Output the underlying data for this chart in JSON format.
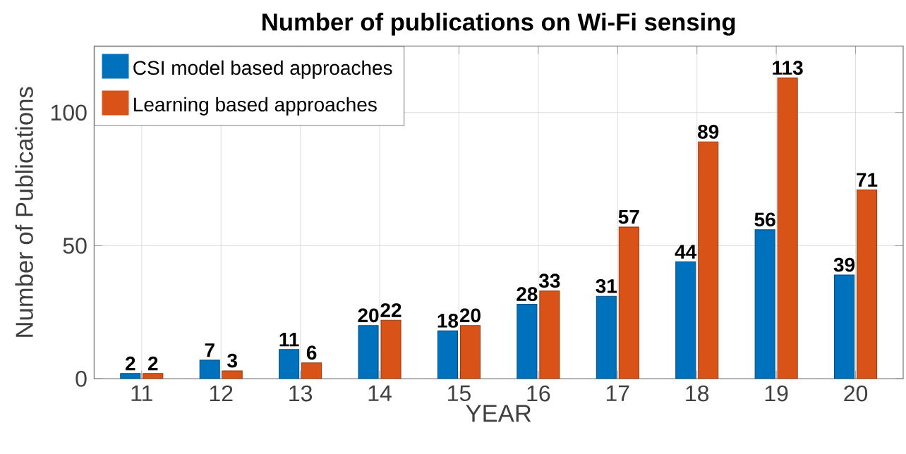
{
  "chart_data": {
    "type": "bar",
    "title": "Number of publications on Wi-Fi sensing",
    "xlabel": "YEAR",
    "ylabel": "Number of Publications",
    "categories": [
      "11",
      "12",
      "13",
      "14",
      "15",
      "16",
      "17",
      "18",
      "19",
      "20"
    ],
    "series": [
      {
        "name": "CSI model based approaches",
        "color": "#0072bd",
        "values": [
          2,
          7,
          11,
          20,
          18,
          28,
          31,
          44,
          56,
          39
        ]
      },
      {
        "name": "Learning based approaches",
        "color": "#d95319",
        "values": [
          2,
          3,
          6,
          22,
          20,
          33,
          57,
          89,
          113,
          71
        ]
      }
    ],
    "ylim": [
      0,
      125
    ],
    "yticks": [
      0,
      50,
      100
    ],
    "grid": true,
    "legend": "top left",
    "data_labels": true
  }
}
